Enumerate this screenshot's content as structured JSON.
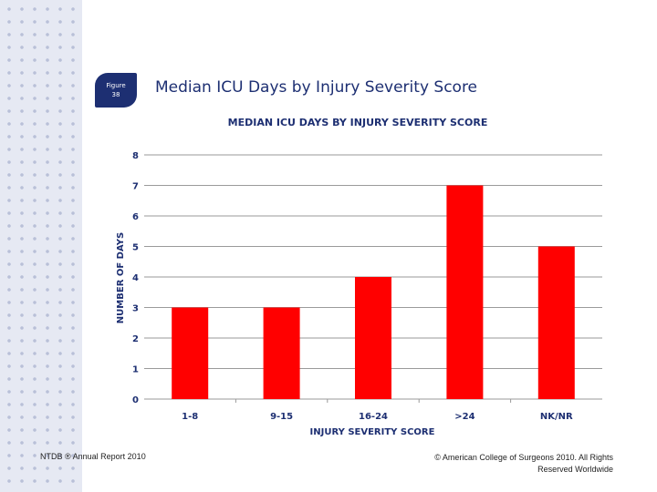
{
  "badge": {
    "line1": "Figure",
    "line2": "38"
  },
  "slide_title": "Median ICU Days by Injury Severity Score",
  "footer": {
    "left": "NTDB ® Annual Report 2010",
    "right": "© American College of Surgeons 2010.  All Rights Reserved Worldwide"
  },
  "colors": {
    "bar": "#ff0000",
    "title": "#1d2f72",
    "grid": "#9a9a9a"
  },
  "chart_data": {
    "type": "bar",
    "title": "MEDIAN ICU DAYS BY INJURY SEVERITY SCORE",
    "xlabel": "INJURY SEVERITY SCORE",
    "ylabel": "NUMBER OF DAYS",
    "categories": [
      "1-8",
      "9-15",
      "16-24",
      ">24",
      "NK/NR"
    ],
    "values": [
      3,
      3,
      4,
      7,
      5
    ],
    "ylim": [
      0,
      8
    ],
    "yticks": [
      "0",
      "1",
      "2",
      "3",
      "4",
      "5",
      "6",
      "7",
      "8"
    ],
    "grid": "horizontal-major"
  }
}
